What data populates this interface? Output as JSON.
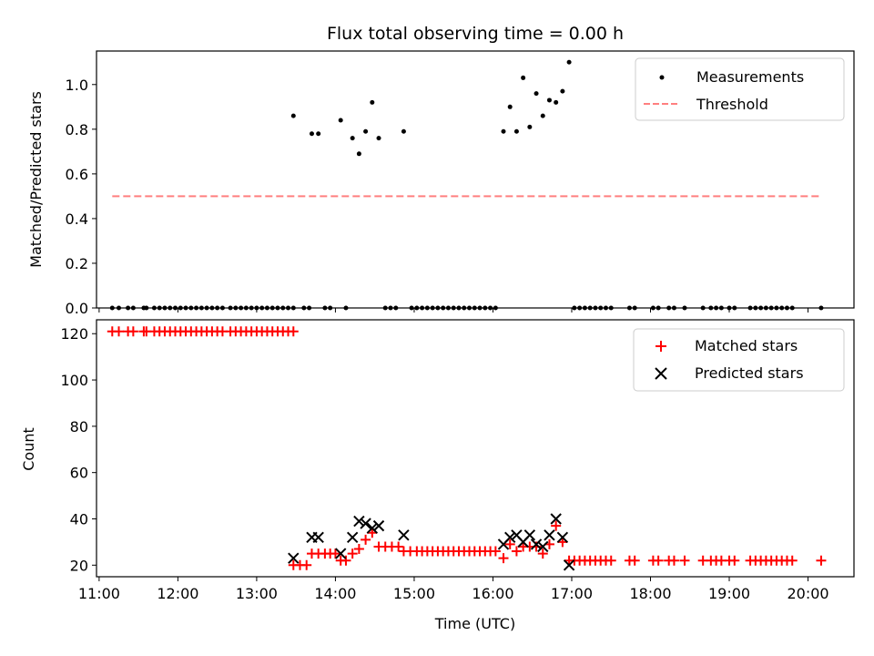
{
  "chart_data": [
    {
      "type": "scatter",
      "title": "Flux total observing time = 0.00 h",
      "xlabel": "",
      "ylabel": "Matched/Predicted stars",
      "xlim": [
        "10:58",
        "20:35"
      ],
      "ylim": [
        0,
        1.15
      ],
      "yticks": [
        "0.0",
        "0.2",
        "0.4",
        "0.6",
        "0.8",
        "1.0"
      ],
      "legend": [
        "Measurements",
        "Threshold"
      ],
      "legend_position": "upper right",
      "threshold": {
        "name": "Threshold",
        "value": 0.5,
        "x_start": "11:10",
        "x_end": "20:10",
        "color": "#ff7f7f",
        "style": "dashed"
      },
      "series": [
        {
          "name": "Measurements",
          "marker": "dot",
          "color": "#000000",
          "points": [
            [
              "11:10",
              0
            ],
            [
              "11:15",
              0
            ],
            [
              "11:22",
              0
            ],
            [
              "11:26",
              0
            ],
            [
              "11:34",
              0
            ],
            [
              "11:36",
              0
            ],
            [
              "11:42",
              0
            ],
            [
              "11:46",
              0
            ],
            [
              "11:50",
              0
            ],
            [
              "11:54",
              0
            ],
            [
              "11:58",
              0
            ],
            [
              "12:02",
              0
            ],
            [
              "12:06",
              0
            ],
            [
              "12:10",
              0
            ],
            [
              "12:14",
              0
            ],
            [
              "12:18",
              0
            ],
            [
              "12:22",
              0
            ],
            [
              "12:26",
              0
            ],
            [
              "12:30",
              0
            ],
            [
              "12:34",
              0
            ],
            [
              "12:40",
              0
            ],
            [
              "12:44",
              0
            ],
            [
              "12:48",
              0
            ],
            [
              "12:52",
              0
            ],
            [
              "12:56",
              0
            ],
            [
              "13:00",
              0
            ],
            [
              "13:04",
              0
            ],
            [
              "13:08",
              0
            ],
            [
              "13:12",
              0
            ],
            [
              "13:16",
              0
            ],
            [
              "13:20",
              0
            ],
            [
              "13:24",
              0
            ],
            [
              "13:28",
              0
            ],
            [
              "13:28",
              0.86
            ],
            [
              "13:36",
              0
            ],
            [
              "13:40",
              0
            ],
            [
              "13:42",
              0.78
            ],
            [
              "13:47",
              0.78
            ],
            [
              "13:52",
              0
            ],
            [
              "13:56",
              0
            ],
            [
              "14:04",
              0.84
            ],
            [
              "14:08",
              0
            ],
            [
              "14:13",
              0.76
            ],
            [
              "14:18",
              0.69
            ],
            [
              "14:23",
              0.79
            ],
            [
              "14:28",
              0.92
            ],
            [
              "14:33",
              0.76
            ],
            [
              "14:38",
              0
            ],
            [
              "14:42",
              0
            ],
            [
              "14:46",
              0
            ],
            [
              "14:52",
              0.79
            ],
            [
              "14:58",
              0
            ],
            [
              "15:02",
              0
            ],
            [
              "15:06",
              0
            ],
            [
              "15:10",
              0
            ],
            [
              "15:14",
              0
            ],
            [
              "15:18",
              0
            ],
            [
              "15:22",
              0
            ],
            [
              "15:26",
              0
            ],
            [
              "15:30",
              0
            ],
            [
              "15:34",
              0
            ],
            [
              "15:38",
              0
            ],
            [
              "15:42",
              0
            ],
            [
              "15:46",
              0
            ],
            [
              "15:50",
              0
            ],
            [
              "15:54",
              0
            ],
            [
              "15:58",
              0
            ],
            [
              "16:02",
              0
            ],
            [
              "16:08",
              0.79
            ],
            [
              "16:13",
              0.9
            ],
            [
              "16:18",
              0.79
            ],
            [
              "16:23",
              1.03
            ],
            [
              "16:28",
              0.81
            ],
            [
              "16:33",
              0.96
            ],
            [
              "16:38",
              0.86
            ],
            [
              "16:43",
              0.93
            ],
            [
              "16:48",
              0.92
            ],
            [
              "16:53",
              0.97
            ],
            [
              "16:58",
              1.1
            ],
            [
              "17:02",
              0
            ],
            [
              "17:06",
              0
            ],
            [
              "17:10",
              0
            ],
            [
              "17:14",
              0
            ],
            [
              "17:18",
              0
            ],
            [
              "17:22",
              0
            ],
            [
              "17:26",
              0
            ],
            [
              "17:30",
              0
            ],
            [
              "17:44",
              0
            ],
            [
              "17:48",
              0
            ],
            [
              "18:02",
              0
            ],
            [
              "18:06",
              0
            ],
            [
              "18:14",
              0
            ],
            [
              "18:18",
              0
            ],
            [
              "18:26",
              0
            ],
            [
              "18:40",
              0
            ],
            [
              "18:46",
              0
            ],
            [
              "18:50",
              0
            ],
            [
              "18:54",
              0
            ],
            [
              "19:00",
              0
            ],
            [
              "19:04",
              0
            ],
            [
              "19:16",
              0
            ],
            [
              "19:20",
              0
            ],
            [
              "19:24",
              0
            ],
            [
              "19:28",
              0
            ],
            [
              "19:32",
              0
            ],
            [
              "19:36",
              0
            ],
            [
              "19:40",
              0
            ],
            [
              "19:44",
              0
            ],
            [
              "19:48",
              0
            ],
            [
              "20:10",
              0
            ]
          ]
        }
      ]
    },
    {
      "type": "scatter",
      "title": "",
      "xlabel": "Time (UTC)",
      "ylabel": "Count",
      "xlim": [
        "10:58",
        "20:35"
      ],
      "ylim": [
        15,
        126
      ],
      "xticks": [
        "11:00",
        "12:00",
        "13:00",
        "14:00",
        "15:00",
        "16:00",
        "17:00",
        "18:00",
        "19:00",
        "20:00"
      ],
      "yticks": [
        "20",
        "40",
        "60",
        "80",
        "100",
        "120"
      ],
      "legend": [
        "Matched stars",
        "Predicted stars"
      ],
      "legend_position": "upper right",
      "series": [
        {
          "name": "Matched stars",
          "marker": "plus",
          "color": "#ff0000",
          "points": [
            [
              "11:10",
              121
            ],
            [
              "11:15",
              121
            ],
            [
              "11:22",
              121
            ],
            [
              "11:26",
              121
            ],
            [
              "11:34",
              121
            ],
            [
              "11:36",
              121
            ],
            [
              "11:42",
              121
            ],
            [
              "11:46",
              121
            ],
            [
              "11:50",
              121
            ],
            [
              "11:54",
              121
            ],
            [
              "11:58",
              121
            ],
            [
              "12:02",
              121
            ],
            [
              "12:06",
              121
            ],
            [
              "12:10",
              121
            ],
            [
              "12:14",
              121
            ],
            [
              "12:18",
              121
            ],
            [
              "12:22",
              121
            ],
            [
              "12:26",
              121
            ],
            [
              "12:30",
              121
            ],
            [
              "12:34",
              121
            ],
            [
              "12:40",
              121
            ],
            [
              "12:44",
              121
            ],
            [
              "12:48",
              121
            ],
            [
              "12:52",
              121
            ],
            [
              "12:56",
              121
            ],
            [
              "13:00",
              121
            ],
            [
              "13:04",
              121
            ],
            [
              "13:08",
              121
            ],
            [
              "13:12",
              121
            ],
            [
              "13:16",
              121
            ],
            [
              "13:20",
              121
            ],
            [
              "13:24",
              121
            ],
            [
              "13:28",
              121
            ],
            [
              "13:28",
              20
            ],
            [
              "13:33",
              20
            ],
            [
              "13:38",
              20
            ],
            [
              "13:42",
              25
            ],
            [
              "13:47",
              25
            ],
            [
              "13:52",
              25
            ],
            [
              "13:56",
              25
            ],
            [
              "14:00",
              25
            ],
            [
              "14:04",
              22
            ],
            [
              "14:08",
              22
            ],
            [
              "14:13",
              25
            ],
            [
              "14:18",
              27
            ],
            [
              "14:23",
              31
            ],
            [
              "14:28",
              34
            ],
            [
              "14:33",
              28
            ],
            [
              "14:38",
              28
            ],
            [
              "14:43",
              28
            ],
            [
              "14:48",
              28
            ],
            [
              "14:52",
              26
            ],
            [
              "14:57",
              26
            ],
            [
              "15:02",
              26
            ],
            [
              "15:06",
              26
            ],
            [
              "15:10",
              26
            ],
            [
              "15:14",
              26
            ],
            [
              "15:18",
              26
            ],
            [
              "15:22",
              26
            ],
            [
              "15:26",
              26
            ],
            [
              "15:30",
              26
            ],
            [
              "15:34",
              26
            ],
            [
              "15:38",
              26
            ],
            [
              "15:42",
              26
            ],
            [
              "15:46",
              26
            ],
            [
              "15:50",
              26
            ],
            [
              "15:54",
              26
            ],
            [
              "15:58",
              26
            ],
            [
              "16:02",
              26
            ],
            [
              "16:08",
              23
            ],
            [
              "16:13",
              29
            ],
            [
              "16:18",
              26
            ],
            [
              "16:23",
              28
            ],
            [
              "16:28",
              28
            ],
            [
              "16:33",
              28
            ],
            [
              "16:38",
              25
            ],
            [
              "16:43",
              29
            ],
            [
              "16:48",
              37
            ],
            [
              "16:53",
              30
            ],
            [
              "16:58",
              22
            ],
            [
              "17:02",
              22
            ],
            [
              "17:06",
              22
            ],
            [
              "17:10",
              22
            ],
            [
              "17:14",
              22
            ],
            [
              "17:18",
              22
            ],
            [
              "17:22",
              22
            ],
            [
              "17:26",
              22
            ],
            [
              "17:30",
              22
            ],
            [
              "17:44",
              22
            ],
            [
              "17:48",
              22
            ],
            [
              "18:02",
              22
            ],
            [
              "18:06",
              22
            ],
            [
              "18:14",
              22
            ],
            [
              "18:18",
              22
            ],
            [
              "18:26",
              22
            ],
            [
              "18:40",
              22
            ],
            [
              "18:46",
              22
            ],
            [
              "18:50",
              22
            ],
            [
              "18:54",
              22
            ],
            [
              "19:00",
              22
            ],
            [
              "19:04",
              22
            ],
            [
              "19:16",
              22
            ],
            [
              "19:20",
              22
            ],
            [
              "19:24",
              22
            ],
            [
              "19:28",
              22
            ],
            [
              "19:32",
              22
            ],
            [
              "19:36",
              22
            ],
            [
              "19:40",
              22
            ],
            [
              "19:44",
              22
            ],
            [
              "19:48",
              22
            ],
            [
              "20:10",
              22
            ]
          ]
        },
        {
          "name": "Predicted stars",
          "marker": "x",
          "color": "#000000",
          "points": [
            [
              "13:28",
              23
            ],
            [
              "13:42",
              32
            ],
            [
              "13:47",
              32
            ],
            [
              "14:04",
              25
            ],
            [
              "14:13",
              32
            ],
            [
              "14:18",
              39
            ],
            [
              "14:23",
              38
            ],
            [
              "14:28",
              36
            ],
            [
              "14:33",
              37
            ],
            [
              "14:52",
              33
            ],
            [
              "16:08",
              29
            ],
            [
              "16:13",
              32
            ],
            [
              "16:18",
              33
            ],
            [
              "16:23",
              30
            ],
            [
              "16:28",
              33
            ],
            [
              "16:33",
              29
            ],
            [
              "16:38",
              28
            ],
            [
              "16:43",
              33
            ],
            [
              "16:48",
              40
            ],
            [
              "16:53",
              32
            ],
            [
              "16:58",
              20
            ]
          ]
        }
      ]
    }
  ]
}
